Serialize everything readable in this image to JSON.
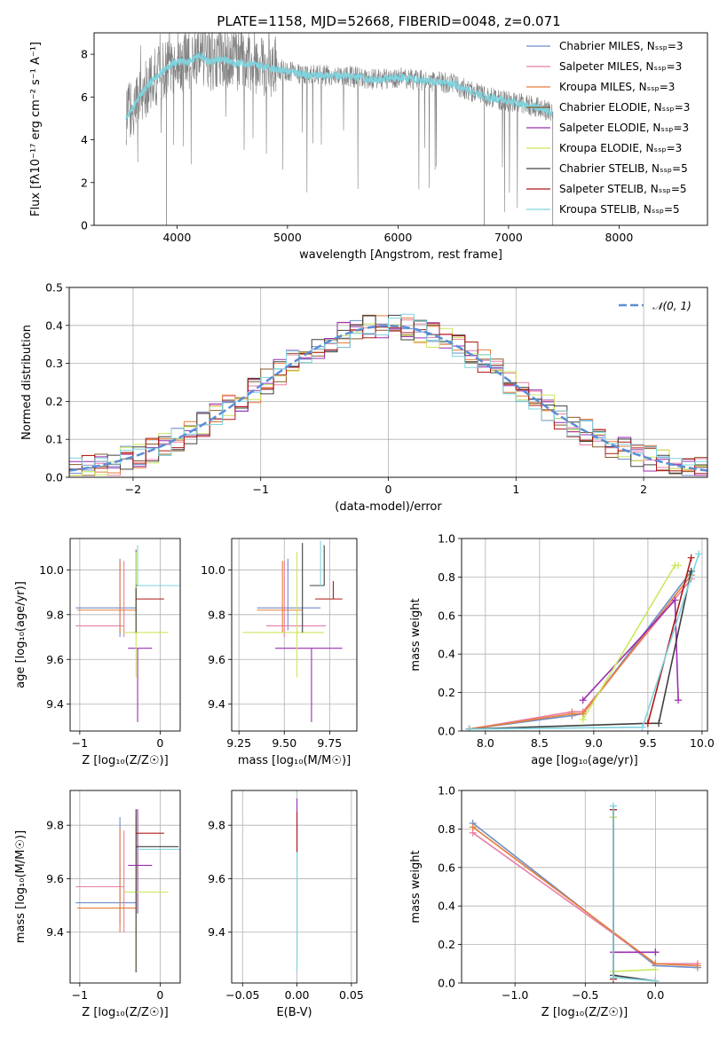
{
  "title": "PLATE=1158, MJD=52668, FIBERID=0048, z=0.071",
  "legend": [
    {
      "label": "Chabrier MILES, Nₛₛₚ=3",
      "color": "#6d8ec7"
    },
    {
      "label": "Salpeter MILES, Nₛₛₚ=3",
      "color": "#e87ea6"
    },
    {
      "label": "Kroupa MILES, Nₛₛₚ=3",
      "color": "#e67e3a"
    },
    {
      "label": "Chabrier ELODIE, Nₛₛₚ=3",
      "color": "#8a5a2b"
    },
    {
      "label": "Salpeter ELODIE, Nₛₛₚ=3",
      "color": "#9a2fb0"
    },
    {
      "label": "Kroupa ELODIE, Nₛₛₚ=3",
      "color": "#c9e85c"
    },
    {
      "label": "Chabrier STELIB, Nₛₛₚ=5",
      "color": "#404040"
    },
    {
      "label": "Salpeter STELIB, Nₛₛₚ=5",
      "color": "#b01818"
    },
    {
      "label": "Kroupa STELIB, Nₛₛₚ=5",
      "color": "#7ed3de"
    }
  ],
  "chart_data": [
    {
      "id": "spectrum",
      "type": "line",
      "xlabel": "wavelength [Angstrom, rest frame]",
      "ylabel": "Flux [fλ10⁻¹⁷ erg cm⁻² s⁻¹ A⁻¹]",
      "xlim": [
        3250,
        8800
      ],
      "ylim": [
        0,
        9
      ],
      "xticks": [
        4000,
        5000,
        6000,
        7000,
        8000
      ],
      "yticks": [
        0,
        2,
        4,
        6,
        8
      ],
      "grid": false,
      "data_color": "#808080",
      "model_color": "#7ed3de",
      "continuum": {
        "x": [
          3540,
          3600,
          3700,
          3800,
          3900,
          4000,
          4100,
          4200,
          4300,
          4400,
          4500,
          4700,
          4900,
          5200,
          5500,
          5800,
          6000,
          6200,
          6500,
          6800,
          7000,
          7200,
          7400
        ],
        "y": [
          5.1,
          5.5,
          6.3,
          6.9,
          7.3,
          7.7,
          7.6,
          8.0,
          7.6,
          7.8,
          7.6,
          7.5,
          7.3,
          7.0,
          7.0,
          6.8,
          6.9,
          6.8,
          6.6,
          6.0,
          5.8,
          5.6,
          5.3
        ]
      }
    },
    {
      "id": "residuals",
      "type": "step",
      "xlabel": "(data-model)/error",
      "ylabel": "Normed distribution",
      "xlim": [
        -2.5,
        2.5
      ],
      "ylim": [
        0,
        0.5
      ],
      "xticks": [
        -2,
        -1,
        0,
        1,
        2
      ],
      "yticks": [
        0.0,
        0.1,
        0.2,
        0.3,
        0.4,
        0.5
      ],
      "grid": true,
      "legend_entry": "𝒩(0, 1)",
      "legend_position": "top-right",
      "gaussian": {
        "mu": 0,
        "sigma": 1,
        "color": "#5b8dd6"
      }
    },
    {
      "id": "age_vs_Z",
      "type": "errorbar",
      "xlabel": "Z [log₁₀(Z/Z☉)]",
      "ylabel": "age  [log₁₀(age/yr)]",
      "xlim": [
        -1.12,
        0.25
      ],
      "ylim": [
        9.28,
        10.14
      ],
      "xticks": [
        -1,
        0
      ],
      "yticks": [
        9.4,
        9.6,
        9.8,
        10.0
      ],
      "grid": true,
      "points": [
        {
          "x": -0.3,
          "y": 9.83,
          "xerr": [
            0.75,
            0.0
          ],
          "yerr": [
            0.0,
            0.0
          ],
          "color": "#6d8ec7"
        },
        {
          "x": -0.5,
          "y": 9.83,
          "xerr": [
            0.0,
            0.0
          ],
          "yerr": [
            0.13,
            0.22
          ],
          "color": "#6d8ec7"
        },
        {
          "x": -0.45,
          "y": 9.75,
          "xerr": [
            0.6,
            0.0
          ],
          "yerr": [
            0.0,
            0.0
          ],
          "color": "#e87ea6"
        },
        {
          "x": -0.45,
          "y": 9.82,
          "xerr": [
            0.0,
            0.0
          ],
          "yerr": [
            0.12,
            0.22
          ],
          "color": "#e87ea6"
        },
        {
          "x": -0.3,
          "y": 9.82,
          "xerr": [
            0.73,
            0.0
          ],
          "yerr": [
            0.0,
            0.0
          ],
          "color": "#e67e3a"
        },
        {
          "x": -0.5,
          "y": 9.82,
          "xerr": [
            0.0,
            0.0
          ],
          "yerr": [
            0.1,
            0.22
          ],
          "color": "#e67e3a"
        },
        {
          "x": -0.3,
          "y": 9.93,
          "xerr": [
            0.0,
            0.0
          ],
          "yerr": [
            0.12,
            0.16
          ],
          "color": "#8a5a2b"
        },
        {
          "x": -0.4,
          "y": 9.65,
          "xerr": [
            0.0,
            0.3
          ],
          "yerr": [
            0.0,
            0.0
          ],
          "color": "#9a2fb0"
        },
        {
          "x": -0.28,
          "y": 9.65,
          "xerr": [
            0.0,
            0.0
          ],
          "yerr": [
            0.33,
            0.0
          ],
          "color": "#9a2fb0"
        },
        {
          "x": -0.3,
          "y": 9.72,
          "xerr": [
            0.15,
            0.4
          ],
          "yerr": [
            0.0,
            0.0
          ],
          "color": "#c9e85c"
        },
        {
          "x": -0.3,
          "y": 9.72,
          "xerr": [
            0.0,
            0.0
          ],
          "yerr": [
            0.2,
            0.36
          ],
          "color": "#c9e85c"
        },
        {
          "x": -0.3,
          "y": 9.72,
          "xerr": [
            0.0,
            0.0
          ],
          "yerr": [
            0.0,
            0.2
          ],
          "color": "#404040"
        },
        {
          "x": -0.3,
          "y": 9.87,
          "xerr": [
            0.0,
            0.35
          ],
          "yerr": [
            0.0,
            0.0
          ],
          "color": "#b01818"
        },
        {
          "x": -0.3,
          "y": 9.93,
          "xerr": [
            0.0,
            0.53
          ],
          "yerr": [
            0.0,
            0.0
          ],
          "color": "#404040"
        },
        {
          "x": -0.28,
          "y": 9.93,
          "xerr": [
            0.0,
            0.55
          ],
          "yerr": [
            0.0,
            0.0
          ],
          "color": "#7ed3de"
        },
        {
          "x": -0.28,
          "y": 9.93,
          "xerr": [
            0.0,
            0.0
          ],
          "yerr": [
            0.0,
            0.18
          ],
          "color": "#7ed3de"
        }
      ]
    },
    {
      "id": "age_vs_mass",
      "type": "errorbar",
      "xlabel": "mass [log₁₀(M/M☉)]",
      "ylabel": "",
      "xlim": [
        9.21,
        9.9
      ],
      "ylim": [
        9.28,
        10.14
      ],
      "xticks": [
        9.25,
        9.5,
        9.75
      ],
      "yticks": [
        9.4,
        9.6,
        9.8,
        10.0
      ],
      "grid": true,
      "points": [
        {
          "x": 9.52,
          "y": 9.83,
          "xerr": [
            0.17,
            0.18
          ],
          "yerr": [
            0.0,
            0.0
          ],
          "color": "#6d8ec7"
        },
        {
          "x": 9.52,
          "y": 9.83,
          "xerr": [
            0.0,
            0.0
          ],
          "yerr": [
            0.1,
            0.22
          ],
          "color": "#6d8ec7"
        },
        {
          "x": 9.57,
          "y": 9.75,
          "xerr": [
            0.17,
            0.16
          ],
          "yerr": [
            0.0,
            0.0
          ],
          "color": "#e87ea6"
        },
        {
          "x": 9.5,
          "y": 9.82,
          "xerr": [
            0.0,
            0.0
          ],
          "yerr": [
            0.12,
            0.22
          ],
          "color": "#e87ea6"
        },
        {
          "x": 9.5,
          "y": 9.82,
          "xerr": [
            0.15,
            0.1
          ],
          "yerr": [
            0.0,
            0.0
          ],
          "color": "#e67e3a"
        },
        {
          "x": 9.49,
          "y": 9.82,
          "xerr": [
            0.0,
            0.0
          ],
          "yerr": [
            0.1,
            0.22
          ],
          "color": "#e67e3a"
        },
        {
          "x": 9.65,
          "y": 9.65,
          "xerr": [
            0.2,
            0.17
          ],
          "yerr": [
            0.0,
            0.0
          ],
          "color": "#9a2fb0"
        },
        {
          "x": 9.65,
          "y": 9.65,
          "xerr": [
            0.0,
            0.0
          ],
          "yerr": [
            0.33,
            0.0
          ],
          "color": "#9a2fb0"
        },
        {
          "x": 9.55,
          "y": 9.72,
          "xerr": [
            0.28,
            0.17
          ],
          "yerr": [
            0.0,
            0.0
          ],
          "color": "#c9e85c"
        },
        {
          "x": 9.57,
          "y": 9.72,
          "xerr": [
            0.0,
            0.0
          ],
          "yerr": [
            0.2,
            0.36
          ],
          "color": "#c9e85c"
        },
        {
          "x": 9.6,
          "y": 9.72,
          "xerr": [
            0.0,
            0.0
          ],
          "yerr": [
            0.0,
            0.4
          ],
          "color": "#404040"
        },
        {
          "x": 9.77,
          "y": 9.87,
          "xerr": [
            0.1,
            0.05
          ],
          "yerr": [
            0.0,
            0.08
          ],
          "color": "#b01818"
        },
        {
          "x": 9.72,
          "y": 9.93,
          "xerr": [
            0.08,
            0.0
          ],
          "yerr": [
            0.0,
            0.18
          ],
          "color": "#404040"
        },
        {
          "x": 9.7,
          "y": 9.93,
          "xerr": [
            0.0,
            0.0
          ],
          "yerr": [
            0.0,
            0.2
          ],
          "color": "#7ed3de"
        }
      ]
    },
    {
      "id": "weight_vs_age",
      "type": "line",
      "xlabel": "age  [log₁₀(age/yr)]",
      "ylabel": "mass weight",
      "xlim": [
        7.78,
        10.05
      ],
      "ylim": [
        0,
        1
      ],
      "xticks": [
        8.0,
        8.5,
        9.0,
        9.5,
        10.0
      ],
      "yticks": [
        0.0,
        0.2,
        0.4,
        0.6,
        0.8,
        1.0
      ],
      "grid": true,
      "series": [
        {
          "x": [
            7.85,
            8.8,
            8.9,
            9.9
          ],
          "y": [
            0.01,
            0.08,
            0.09,
            0.83
          ],
          "color": "#6d8ec7"
        },
        {
          "x": [
            7.85,
            8.8,
            8.9,
            9.9
          ],
          "y": [
            0.01,
            0.1,
            0.1,
            0.79
          ],
          "color": "#e87ea6"
        },
        {
          "x": [
            7.85,
            8.8,
            8.9,
            9.9
          ],
          "y": [
            0.01,
            0.09,
            0.09,
            0.81
          ],
          "color": "#e67e3a"
        },
        {
          "x": [
            8.9,
            9.75,
            9.78
          ],
          "y": [
            0.16,
            0.68,
            0.16
          ],
          "color": "#9a2fb0"
        },
        {
          "x": [
            8.9,
            9.75,
            9.78
          ],
          "y": [
            0.06,
            0.86,
            0.86
          ],
          "color": "#c9e85c"
        },
        {
          "x": [
            7.85,
            9.5,
            9.6,
            9.9
          ],
          "y": [
            0.01,
            0.04,
            0.04,
            0.83
          ],
          "color": "#404040"
        },
        {
          "x": [
            9.5,
            9.9
          ],
          "y": [
            0.04,
            0.9
          ],
          "color": "#b01818"
        },
        {
          "x": [
            7.85,
            9.45,
            9.97
          ],
          "y": [
            0.01,
            0.02,
            0.92
          ],
          "color": "#7ed3de"
        }
      ]
    },
    {
      "id": "mass_vs_Z",
      "type": "errorbar",
      "xlabel": "Z [log₁₀(Z/Z☉)]",
      "ylabel": "mass [log₁₀(M/M☉)]",
      "xlim": [
        -1.12,
        0.25
      ],
      "ylim": [
        9.21,
        9.93
      ],
      "xticks": [
        -1,
        0
      ],
      "yticks": [
        9.4,
        9.6,
        9.8
      ],
      "grid": true,
      "points": [
        {
          "x": -0.3,
          "y": 9.51,
          "xerr": [
            0.75,
            0.0
          ],
          "yerr": [
            0.0,
            0.0
          ],
          "color": "#6d8ec7"
        },
        {
          "x": -0.5,
          "y": 9.51,
          "xerr": [
            0.0,
            0.0
          ],
          "yerr": [
            0.08,
            0.32
          ],
          "color": "#6d8ec7"
        },
        {
          "x": -0.45,
          "y": 9.57,
          "xerr": [
            0.6,
            0.0
          ],
          "yerr": [
            0.0,
            0.0
          ],
          "color": "#e87ea6"
        },
        {
          "x": -0.45,
          "y": 9.57,
          "xerr": [
            0.0,
            0.0
          ],
          "yerr": [
            0.17,
            0.21
          ],
          "color": "#e87ea6"
        },
        {
          "x": -0.3,
          "y": 9.49,
          "xerr": [
            0.73,
            0.0
          ],
          "yerr": [
            0.0,
            0.0
          ],
          "color": "#e67e3a"
        },
        {
          "x": -0.5,
          "y": 9.49,
          "xerr": [
            0.0,
            0.0
          ],
          "yerr": [
            0.09,
            0.3
          ],
          "color": "#e67e3a"
        },
        {
          "x": -0.4,
          "y": 9.65,
          "xerr": [
            0.0,
            0.3
          ],
          "yerr": [
            0.0,
            0.0
          ],
          "color": "#9a2fb0"
        },
        {
          "x": -0.28,
          "y": 9.65,
          "xerr": [
            0.0,
            0.0
          ],
          "yerr": [
            0.18,
            0.21
          ],
          "color": "#9a2fb0"
        },
        {
          "x": -0.3,
          "y": 9.55,
          "xerr": [
            0.15,
            0.4
          ],
          "yerr": [
            0.0,
            0.0
          ],
          "color": "#c9e85c"
        },
        {
          "x": -0.3,
          "y": 9.55,
          "xerr": [
            0.0,
            0.0
          ],
          "yerr": [
            0.3,
            0.28
          ],
          "color": "#c9e85c"
        },
        {
          "x": -0.3,
          "y": 9.72,
          "xerr": [
            0.0,
            0.0
          ],
          "yerr": [
            0.47,
            0.14
          ],
          "color": "#404040"
        },
        {
          "x": -0.3,
          "y": 9.77,
          "xerr": [
            0.0,
            0.35
          ],
          "yerr": [
            0.0,
            0.0
          ],
          "color": "#b01818"
        },
        {
          "x": -0.3,
          "y": 9.72,
          "xerr": [
            0.0,
            0.53
          ],
          "yerr": [
            0.0,
            0.0
          ],
          "color": "#404040"
        },
        {
          "x": -0.28,
          "y": 9.71,
          "xerr": [
            0.0,
            0.55
          ],
          "yerr": [
            0.0,
            0.0
          ],
          "color": "#7ed3de"
        }
      ]
    },
    {
      "id": "mass_vs_EBV",
      "type": "errorbar",
      "xlabel": "E(B-V)",
      "ylabel": "",
      "xlim": [
        -0.06,
        0.055
      ],
      "ylim": [
        9.21,
        9.93
      ],
      "xticks": [
        -0.05,
        0.0,
        0.05
      ],
      "yticks": [
        9.4,
        9.6,
        9.8
      ],
      "grid": true,
      "points": [
        {
          "x": 0.0,
          "y": 9.6,
          "xerr": [
            0.0,
            0.0
          ],
          "yerr": [
            0.3,
            0.3
          ],
          "color": "#9a2fb0"
        },
        {
          "x": 0.0,
          "y": 9.58,
          "xerr": [
            0.0,
            0.0
          ],
          "yerr": [
            0.3,
            0.2
          ],
          "color": "#c9e85c"
        },
        {
          "x": 0.0,
          "y": 9.58,
          "xerr": [
            0.0,
            0.0
          ],
          "yerr": [
            0.33,
            0.22
          ],
          "color": "#7ed3de"
        },
        {
          "x": 0.0,
          "y": 9.75,
          "xerr": [
            0.0,
            0.0
          ],
          "yerr": [
            0.05,
            0.1
          ],
          "color": "#b01818"
        }
      ]
    },
    {
      "id": "weight_vs_Z",
      "type": "line",
      "xlabel": "Z [log₁₀(Z/Z☉)]",
      "ylabel": "mass weight",
      "xlim": [
        -1.38,
        0.37
      ],
      "ylim": [
        0,
        1
      ],
      "xticks": [
        -1.0,
        -0.5,
        0.0
      ],
      "yticks": [
        0.0,
        0.2,
        0.4,
        0.6,
        0.8,
        1.0
      ],
      "grid": true,
      "series": [
        {
          "x": [
            -1.3,
            0.0,
            0.3
          ],
          "y": [
            0.83,
            0.09,
            0.08
          ],
          "color": "#6d8ec7"
        },
        {
          "x": [
            -1.3,
            0.0,
            0.3
          ],
          "y": [
            0.78,
            0.1,
            0.1
          ],
          "color": "#e87ea6"
        },
        {
          "x": [
            -1.3,
            0.0,
            0.3
          ],
          "y": [
            0.81,
            0.1,
            0.09
          ],
          "color": "#e67e3a"
        },
        {
          "x": [
            -0.3,
            -0.3,
            0.0,
            0.0
          ],
          "y": [
            0.86,
            0.16,
            0.16,
            0.16
          ],
          "color": "#9a2fb0"
        },
        {
          "x": [
            -0.3,
            -0.3,
            0.0
          ],
          "y": [
            0.86,
            0.06,
            0.07
          ],
          "color": "#c9e85c"
        },
        {
          "x": [
            -0.3,
            -0.3,
            0.0
          ],
          "y": [
            0.9,
            0.04,
            0.01
          ],
          "color": "#404040"
        },
        {
          "x": [
            -0.3,
            -0.3
          ],
          "y": [
            0.9,
            0.02
          ],
          "color": "#b01818"
        },
        {
          "x": [
            -0.3,
            -0.3,
            0.0
          ],
          "y": [
            0.92,
            0.03,
            0.01
          ],
          "color": "#7ed3de"
        }
      ]
    }
  ]
}
